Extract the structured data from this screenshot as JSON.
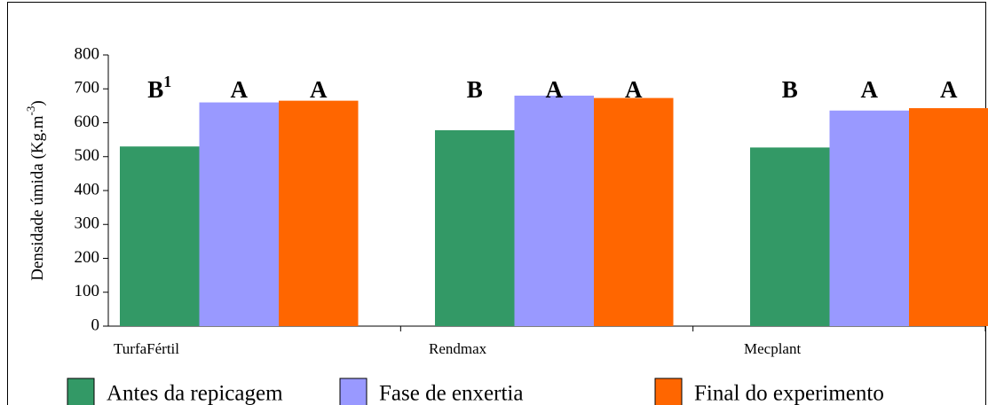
{
  "chart_data": {
    "type": "bar",
    "y_label": "Densidade úmida (Kg.m",
    "y_label_sup": "-3",
    "y_label_end": ")",
    "categories": [
      "TurfaFértil",
      "Rendmax",
      "Mecplant"
    ],
    "series": [
      {
        "name": "Antes da repicagem",
        "color": "#339966",
        "values": [
          530,
          578,
          527
        ],
        "letters": [
          "B",
          "B",
          "B"
        ]
      },
      {
        "name": "Fase de enxertia",
        "color": "#9999ff",
        "values": [
          660,
          680,
          636
        ],
        "letters": [
          "A",
          "A",
          "A"
        ]
      },
      {
        "name": "Final do experimento",
        "color": "#ff6600",
        "values": [
          665,
          673,
          643
        ],
        "letters": [
          "A",
          "A",
          "A"
        ]
      }
    ],
    "footnote_marker": "1",
    "ylim": [
      0,
      800
    ],
    "yticks": [
      0,
      100,
      200,
      300,
      400,
      500,
      600,
      700,
      800
    ],
    "grid": false,
    "legend": "bottom"
  }
}
